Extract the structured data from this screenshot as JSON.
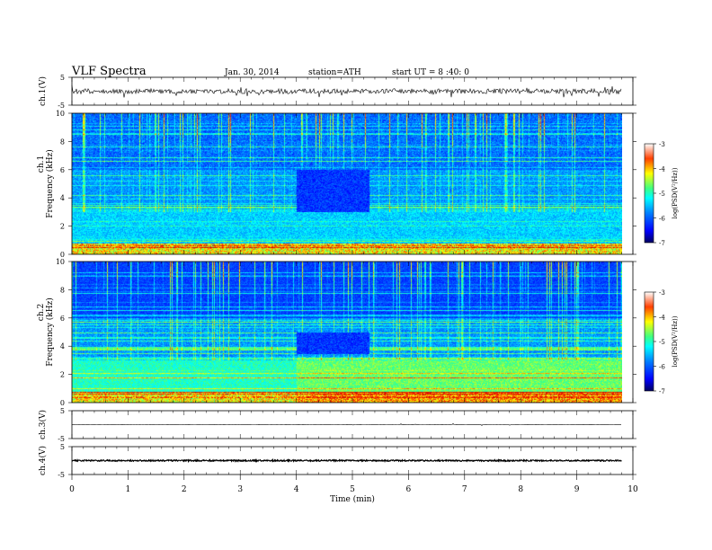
{
  "header": {
    "title": "VLF  Spectra",
    "date": "Jan. 30, 2014",
    "station": "station=ATH",
    "start": "start  UT =   8 :40: 0"
  },
  "chart_data": {
    "type": "heatmap",
    "x_axis": {
      "label": "Time  (min)",
      "range": [
        0,
        10
      ],
      "ticks": [
        "0",
        "1",
        "2",
        "3",
        "4",
        "5",
        "6",
        "7",
        "8",
        "9",
        "10"
      ],
      "data_end": 9.8
    },
    "panels": [
      {
        "id": "ch1-wave",
        "kind": "waveform",
        "ylabel": "ch.1(V)",
        "ylim": [
          -5,
          5
        ],
        "ticks": [
          "5",
          "-5"
        ],
        "baseline": 0,
        "amplitude": 0.9,
        "noise": "high"
      },
      {
        "id": "ch1-spec",
        "kind": "spectrogram",
        "ylabel_top": "ch.1",
        "ylabel": "Frequency  (kHz)",
        "ylim": [
          0,
          10
        ],
        "ticks": [
          "0",
          "2",
          "4",
          "6",
          "8",
          "10"
        ],
        "colorbar": {
          "label": "log(PSD(V²/Hz))",
          "range": [
            -7,
            -3
          ],
          "ticks": [
            "-3",
            "-4",
            "-5",
            "-6",
            "-7"
          ]
        },
        "quiet_interval": [
          4.0,
          5.3
        ],
        "quiet_band_khz": [
          3.0,
          6.0
        ]
      },
      {
        "id": "ch2-spec",
        "kind": "spectrogram",
        "ylabel_top": "ch.2",
        "ylabel": "Frequency  (kHz)",
        "ylim": [
          0,
          10
        ],
        "ticks": [
          "0",
          "2",
          "4",
          "6",
          "8",
          "10"
        ],
        "colorbar": {
          "label": "log(PSD(V²/Hz))",
          "range": [
            -7,
            -3
          ],
          "ticks": [
            "-3",
            "-4",
            "-5",
            "-6",
            "-7"
          ]
        },
        "quiet_interval": [
          4.0,
          5.3
        ],
        "quiet_band_khz": [
          3.5,
          5.0
        ]
      },
      {
        "id": "ch3-wave",
        "kind": "waveform",
        "ylabel": "ch.3(V)",
        "ylim": [
          -5,
          5
        ],
        "ticks": [
          "5",
          "-5"
        ],
        "baseline": 0,
        "amplitude": 0.05,
        "noise": "low"
      },
      {
        "id": "ch4-wave",
        "kind": "waveform",
        "ylabel": "ch.4(V)",
        "ylim": [
          -5,
          5
        ],
        "ticks": [
          "5",
          "-5"
        ],
        "baseline": 0,
        "amplitude": 0.25,
        "noise": "thick"
      }
    ],
    "colormap": [
      "#00007f",
      "#0000ff",
      "#007fff",
      "#00ffff",
      "#7fff7f",
      "#ffff00",
      "#ff7f00",
      "#ff0000",
      "#7f0000"
    ]
  }
}
